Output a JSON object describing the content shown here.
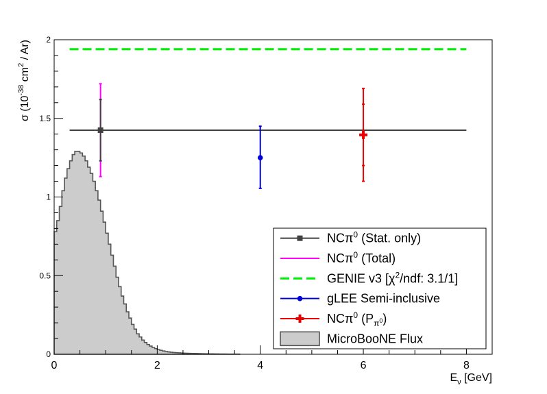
{
  "chart_data": {
    "type": "scatter",
    "xlabel": "E_ν [GeV]",
    "xlabel_main": "E",
    "xlabel_sub": "ν",
    "xlabel_unit": " [GeV]",
    "ylabel": "σ (10^-38 cm^2 / Ar)",
    "ylabel_parts": {
      "a": "σ (10",
      "exp1": "-38",
      "b": " cm",
      "exp2": "2",
      "c": " / Ar)"
    },
    "xlim": [
      0,
      8.5
    ],
    "ylim": [
      0,
      2
    ],
    "x_ticks": [
      0,
      2,
      4,
      6,
      8
    ],
    "x_tick_labels": [
      "0",
      "2",
      "4",
      "6",
      "8"
    ],
    "y_ticks": [
      0,
      0.5,
      1,
      1.5,
      2
    ],
    "y_tick_labels": [
      "0",
      "0.5",
      "1",
      "1.5",
      "2"
    ],
    "grid": false,
    "legend_placement": "bottom-right",
    "series": [
      {
        "name": "NCπ0 (Stat. only)",
        "legend_parts": {
          "main": "NCπ",
          "sup": "0",
          "rest": " (Stat. only)"
        },
        "color": "#404040",
        "marker": "square",
        "x": 0.9,
        "y": 1.425,
        "x_err": [
          0.3,
          8.0
        ],
        "y_err": [
          1.23,
          1.62
        ]
      },
      {
        "name": "NCπ0 (Total)",
        "legend_parts": {
          "main": "NCπ",
          "sup": "0",
          "rest": " (Total)"
        },
        "color": "#ff00ff",
        "x": 0.9,
        "y_err": [
          1.13,
          1.72
        ]
      },
      {
        "name": "GENIE v3 [χ2/ndf: 3.1/1]",
        "legend_parts": {
          "a": "GENIE v3 [χ",
          "sup": "2",
          "b": "/ndf: 3.1/1]"
        },
        "color": "#00ee00",
        "style": "dashed",
        "x_range": [
          0.3,
          8.0
        ],
        "y": 1.94
      },
      {
        "name": "gLEE Semi-inclusive",
        "color": "#0000dd",
        "marker": "circle",
        "x": 4.0,
        "y": 1.25,
        "y_err": [
          1.055,
          1.45
        ]
      },
      {
        "name": "NCπ0 (Pπ0)",
        "legend_parts": {
          "main": "NCπ",
          "sup": "0",
          "rest1": " (P",
          "sub": "π",
          "subsup": "0",
          "rest2": ")"
        },
        "color": "#ee0000",
        "marker": "cross",
        "x": 6.0,
        "y": 1.395,
        "y_err": [
          1.1,
          1.69
        ],
        "y_err_inner": [
          1.2,
          1.59
        ]
      },
      {
        "name": "MicroBooNE Flux",
        "type": "histogram",
        "fill": "#cccccc",
        "line": "#555555",
        "bin_width": 0.05,
        "x_start": 0.0,
        "values": [
          0.78,
          0.85,
          0.94,
          1.04,
          1.12,
          1.18,
          1.23,
          1.27,
          1.29,
          1.29,
          1.28,
          1.26,
          1.23,
          1.19,
          1.15,
          1.1,
          1.04,
          0.98,
          0.91,
          0.84,
          0.77,
          0.7,
          0.63,
          0.56,
          0.49,
          0.43,
          0.37,
          0.32,
          0.27,
          0.23,
          0.19,
          0.16,
          0.13,
          0.11,
          0.09,
          0.075,
          0.062,
          0.052,
          0.043,
          0.036,
          0.03,
          0.025,
          0.021,
          0.018,
          0.015,
          0.013,
          0.011,
          0.01,
          0.009,
          0.008,
          0.007,
          0.0065,
          0.006,
          0.0055,
          0.005,
          0.0045,
          0.004,
          0.0036,
          0.0032,
          0.0029,
          0.0026,
          0.0023,
          0.002,
          0.0018,
          0.0016,
          0.0014,
          0.0012,
          0.001,
          0.0009,
          0.0008,
          0.0007,
          0.0006
        ]
      }
    ]
  }
}
